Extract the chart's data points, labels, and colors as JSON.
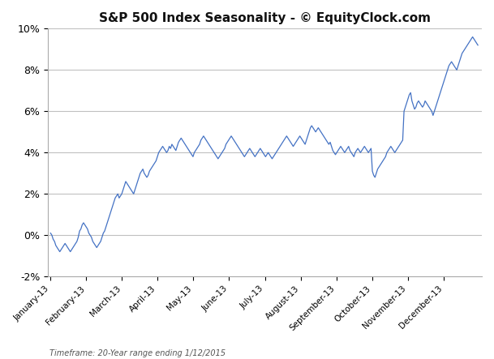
{
  "title": "S&P 500 Index Seasonality - © EquityClock.com",
  "subtitle": "Timeframe: 20-Year range ending 1/12/2015",
  "background_color": "#ffffff",
  "line_color": "#4472C4",
  "grid_color": "#c0c0c0",
  "ylim": [
    -0.02,
    0.1
  ],
  "yticks": [
    -0.02,
    0.0,
    0.02,
    0.04,
    0.06,
    0.08,
    0.1
  ],
  "ytick_labels": [
    "-2%",
    "0%",
    "2%",
    "4%",
    "6%",
    "8%",
    "10%"
  ],
  "x_labels": [
    "January-13",
    "February-13",
    "March-13",
    "April-13",
    "May-13",
    "June-13",
    "July-13",
    "August-13",
    "September-13",
    "October-13",
    "November-13",
    "December-13"
  ],
  "seasonality_data": [
    0.001,
    0.0,
    -0.002,
    -0.003,
    -0.005,
    -0.006,
    -0.007,
    -0.008,
    -0.007,
    -0.006,
    -0.005,
    -0.004,
    -0.005,
    -0.006,
    -0.007,
    -0.008,
    -0.007,
    -0.006,
    -0.005,
    -0.004,
    -0.003,
    -0.001,
    0.002,
    0.003,
    0.005,
    0.006,
    0.005,
    0.004,
    0.003,
    0.001,
    0.0,
    -0.001,
    -0.003,
    -0.004,
    -0.005,
    -0.006,
    -0.005,
    -0.004,
    -0.003,
    -0.001,
    0.001,
    0.002,
    0.004,
    0.006,
    0.008,
    0.01,
    0.012,
    0.014,
    0.016,
    0.018,
    0.019,
    0.02,
    0.018,
    0.019,
    0.02,
    0.022,
    0.024,
    0.026,
    0.025,
    0.024,
    0.023,
    0.022,
    0.021,
    0.02,
    0.022,
    0.024,
    0.026,
    0.028,
    0.03,
    0.031,
    0.032,
    0.03,
    0.029,
    0.028,
    0.029,
    0.031,
    0.032,
    0.033,
    0.034,
    0.035,
    0.036,
    0.038,
    0.04,
    0.041,
    0.042,
    0.043,
    0.042,
    0.041,
    0.04,
    0.041,
    0.043,
    0.042,
    0.044,
    0.043,
    0.042,
    0.041,
    0.043,
    0.045,
    0.046,
    0.047,
    0.046,
    0.045,
    0.044,
    0.043,
    0.042,
    0.041,
    0.04,
    0.039,
    0.038,
    0.04,
    0.041,
    0.042,
    0.043,
    0.044,
    0.046,
    0.047,
    0.048,
    0.047,
    0.046,
    0.045,
    0.044,
    0.043,
    0.042,
    0.041,
    0.04,
    0.039,
    0.038,
    0.037,
    0.038,
    0.039,
    0.04,
    0.041,
    0.042,
    0.044,
    0.045,
    0.046,
    0.047,
    0.048,
    0.047,
    0.046,
    0.045,
    0.044,
    0.043,
    0.042,
    0.041,
    0.04,
    0.039,
    0.038,
    0.039,
    0.04,
    0.041,
    0.042,
    0.041,
    0.04,
    0.039,
    0.038,
    0.039,
    0.04,
    0.041,
    0.042,
    0.041,
    0.04,
    0.039,
    0.038,
    0.039,
    0.04,
    0.039,
    0.038,
    0.037,
    0.038,
    0.039,
    0.04,
    0.041,
    0.042,
    0.043,
    0.044,
    0.045,
    0.046,
    0.047,
    0.048,
    0.047,
    0.046,
    0.045,
    0.044,
    0.043,
    0.044,
    0.045,
    0.046,
    0.047,
    0.048,
    0.047,
    0.046,
    0.045,
    0.044,
    0.046,
    0.048,
    0.05,
    0.052,
    0.053,
    0.052,
    0.051,
    0.05,
    0.051,
    0.052,
    0.051,
    0.05,
    0.049,
    0.048,
    0.047,
    0.046,
    0.045,
    0.044,
    0.045,
    0.043,
    0.041,
    0.04,
    0.039,
    0.04,
    0.041,
    0.042,
    0.043,
    0.042,
    0.041,
    0.04,
    0.041,
    0.042,
    0.043,
    0.041,
    0.04,
    0.039,
    0.038,
    0.04,
    0.041,
    0.042,
    0.041,
    0.04,
    0.041,
    0.042,
    0.043,
    0.042,
    0.041,
    0.04,
    0.041,
    0.042,
    0.031,
    0.029,
    0.028,
    0.03,
    0.032,
    0.033,
    0.034,
    0.035,
    0.036,
    0.037,
    0.038,
    0.04,
    0.041,
    0.042,
    0.043,
    0.042,
    0.041,
    0.04,
    0.041,
    0.042,
    0.043,
    0.044,
    0.045,
    0.046,
    0.06,
    0.062,
    0.064,
    0.066,
    0.068,
    0.069,
    0.065,
    0.063,
    0.061,
    0.062,
    0.064,
    0.065,
    0.064,
    0.063,
    0.062,
    0.063,
    0.065,
    0.064,
    0.063,
    0.062,
    0.061,
    0.06,
    0.058,
    0.06,
    0.062,
    0.064,
    0.066,
    0.068,
    0.07,
    0.072,
    0.074,
    0.076,
    0.078,
    0.08,
    0.082,
    0.083,
    0.084,
    0.083,
    0.082,
    0.081,
    0.08,
    0.082,
    0.084,
    0.086,
    0.088,
    0.089,
    0.09,
    0.091,
    0.092,
    0.093,
    0.094,
    0.095,
    0.096,
    0.095,
    0.094,
    0.093,
    0.092
  ]
}
